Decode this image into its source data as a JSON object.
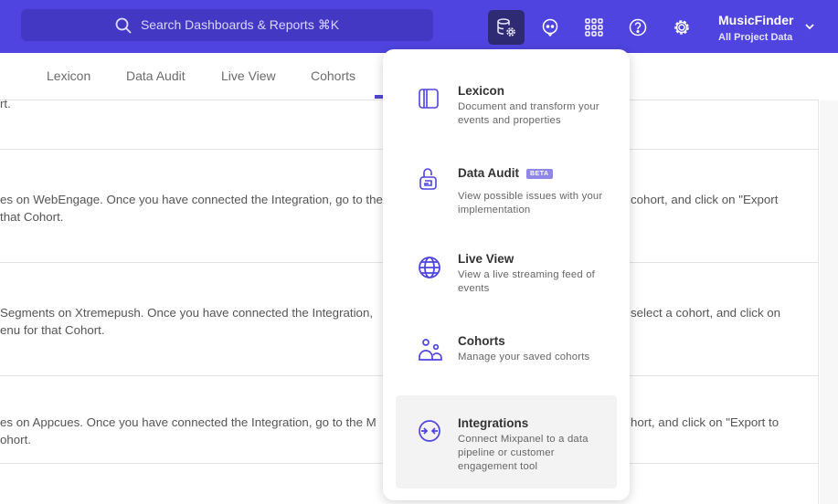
{
  "topbar": {
    "search_placeholder": "Search Dashboards & Reports ⌘K",
    "icons": [
      "data-management-icon",
      "chat-icon",
      "apps-grid-icon",
      "help-icon",
      "settings-icon"
    ],
    "project": {
      "name": "MusicFinder",
      "subtitle": "All Project Data"
    }
  },
  "tabs": [
    "Lexicon",
    "Data Audit",
    "Live View",
    "Cohorts"
  ],
  "content": {
    "row0": {
      "line1": "rt."
    },
    "row1": {
      "left1": "es on WebEngage. Once you have connected the Integration, go to the",
      "right1": "cohort, and click on \"Export",
      "left2": "that Cohort."
    },
    "row2": {
      "left1": "Segments on Xtremepush. Once you have connected the Integration, ",
      "right1": "select a cohort, and click on",
      "left2": "enu for that Cohort."
    },
    "row3": {
      "left1": "es on Appcues. Once you have connected the Integration, go to the M",
      "right1": "hort, and click on \"Export to",
      "left2": "ohort."
    }
  },
  "menu": {
    "items": [
      {
        "title": "Lexicon",
        "desc": "Document and transform your events and properties",
        "icon": "lexicon-icon"
      },
      {
        "title": "Data Audit",
        "badge": "BETA",
        "desc": "View possible issues with your implementation",
        "icon": "data-audit-icon"
      },
      {
        "title": "Live View",
        "desc": "View a live streaming feed of events",
        "icon": "globe-icon"
      },
      {
        "title": "Cohorts",
        "desc": "Manage your saved cohorts",
        "icon": "cohorts-icon"
      },
      {
        "title": "Integrations",
        "desc": "Connect Mixpanel to a data pipeline or customer engagement tool",
        "icon": "integrations-icon"
      }
    ]
  },
  "colors": {
    "brand": "#4f44e0",
    "search_bg": "#4338c4",
    "active_icon_bg": "#2e2a73"
  }
}
